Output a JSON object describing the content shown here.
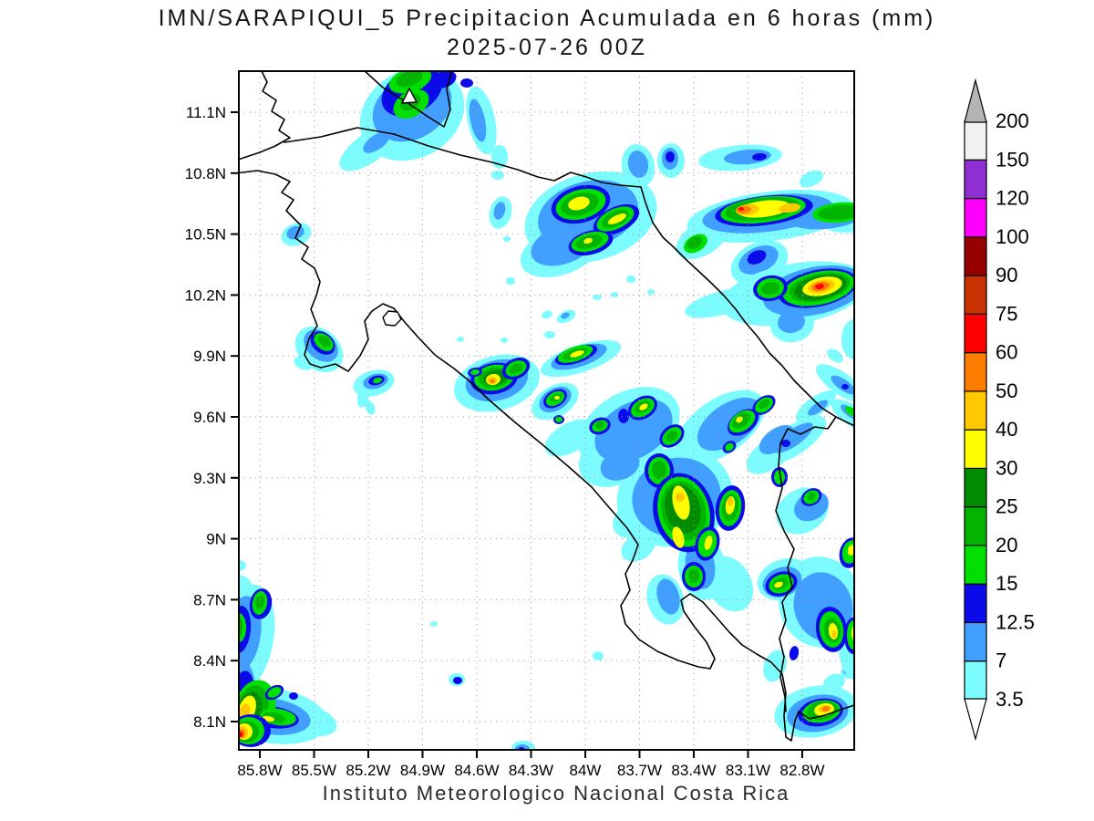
{
  "title": {
    "line1": "IMN/SARAPIQUI_5 Precipitacion Acumulada en 6 horas (mm)",
    "line2": "2025-07-26 00Z"
  },
  "footer": "Instituto Meteorologico Nacional Costa Rica",
  "map_axes": {
    "lat_ticks": [
      "11.1N",
      "10.8N",
      "10.5N",
      "10.2N",
      "9.9N",
      "9.6N",
      "9.3N",
      "9N",
      "8.7N",
      "8.4N",
      "8.1N"
    ],
    "lon_ticks": [
      "85.8W",
      "85.5W",
      "85.2W",
      "84.9W",
      "84.6W",
      "84.3W",
      "84W",
      "83.7W",
      "83.4W",
      "83.1W",
      "82.8W"
    ]
  },
  "colorbar": {
    "unit": "mm",
    "levels": [
      3.5,
      7,
      12.5,
      15,
      20,
      25,
      30,
      40,
      50,
      60,
      75,
      90,
      100,
      120,
      150,
      200
    ],
    "segment_colors_bottom_to_top": [
      "#7dfcff",
      "#41a0ff",
      "#0b0bea",
      "#00e000",
      "#00b400",
      "#008c00",
      "#ffff00",
      "#ffc800",
      "#ff7e00",
      "#ff0000",
      "#c83200",
      "#960000",
      "#ff00ff",
      "#8d2fd2",
      "#f2f2f2"
    ],
    "below_min_color": "#ffffff",
    "above_max_color": "#b4b4b4"
  }
}
